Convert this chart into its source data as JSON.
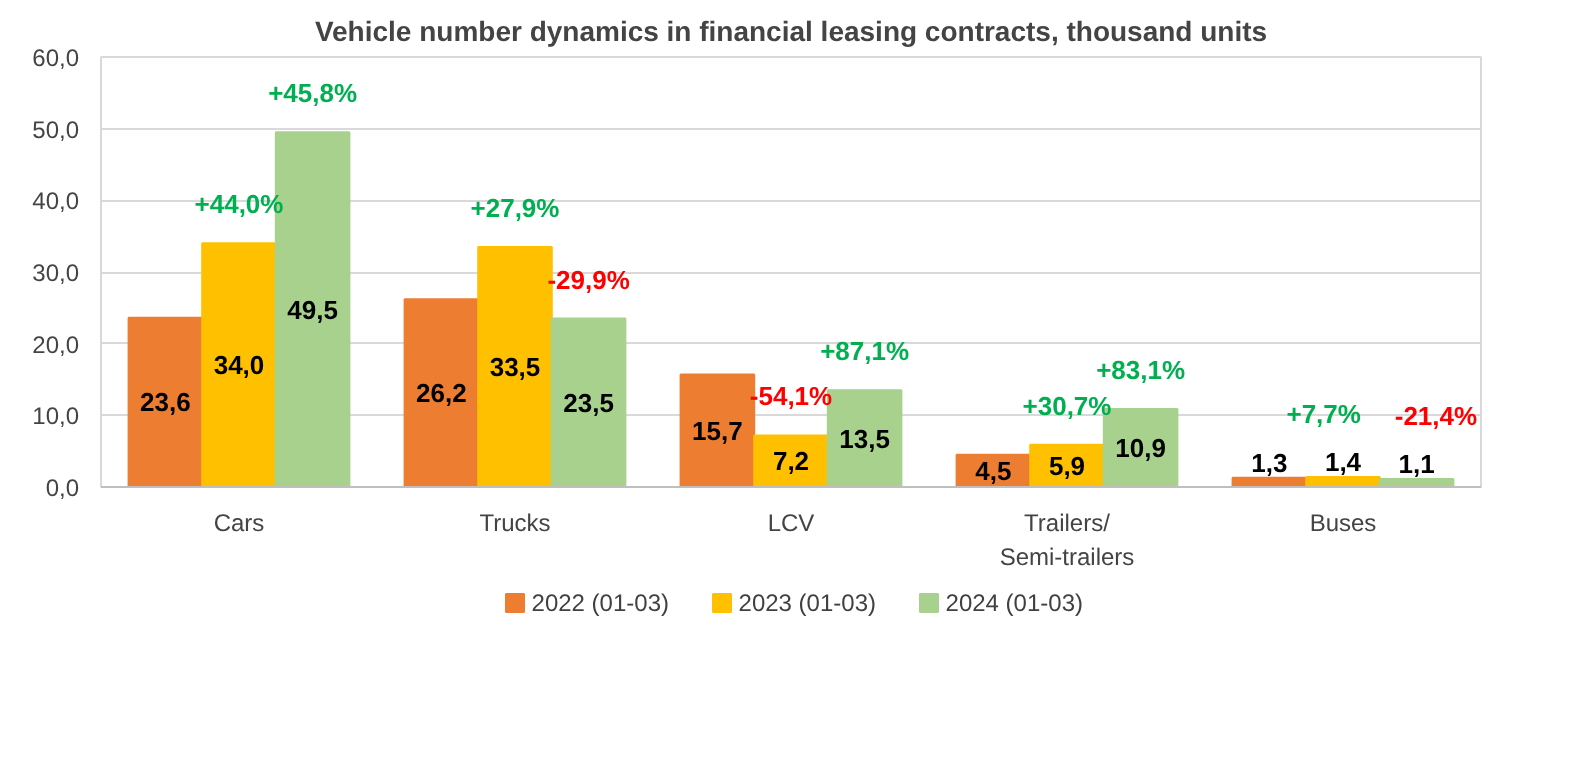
{
  "chart_data": {
    "type": "bar",
    "title": "Vehicle number dynamics in financial leasing contracts, thousand units",
    "categories": [
      "Cars",
      "Trucks",
      "LCV",
      "Trailers/\nSemi-trailers",
      "Buses"
    ],
    "series": [
      {
        "name": "2022 (01-03)",
        "color": "#ed7d31",
        "values": [
          23.6,
          26.2,
          15.7,
          4.5,
          1.3
        ],
        "value_labels": [
          "23,6",
          "26,2",
          "15,7",
          "4,5",
          "1,3"
        ]
      },
      {
        "name": "2023 (01-03)",
        "color": "#ffc000",
        "values": [
          34.0,
          33.5,
          7.2,
          5.9,
          1.4
        ],
        "value_labels": [
          "34,0",
          "33,5",
          "7,2",
          "5,9",
          "1,4"
        ]
      },
      {
        "name": "2024 (01-03)",
        "color": "#a9d18e",
        "values": [
          49.5,
          23.5,
          13.5,
          10.9,
          1.1
        ],
        "value_labels": [
          "49,5",
          "23,5",
          "13,5",
          "10,9",
          "1,1"
        ]
      }
    ],
    "ylim": [
      0,
      60
    ],
    "yticks": [
      {
        "value": 0,
        "label": "0,0"
      },
      {
        "value": 10,
        "label": "10,0"
      },
      {
        "value": 20,
        "label": "20,0"
      },
      {
        "value": 30,
        "label": "30,0"
      },
      {
        "value": 40,
        "label": "40,0"
      },
      {
        "value": 50,
        "label": "50,0"
      },
      {
        "value": 60,
        "label": "60,0"
      }
    ],
    "grid": "y",
    "legend": "bottom",
    "annotations": [
      "+44,0%",
      "+45,8%",
      "+27,9%",
      "-29,9%",
      "-54,1%",
      "+87,1%",
      "+30,7%",
      "+83,1%",
      "+7,7%",
      "-21,4%"
    ]
  }
}
